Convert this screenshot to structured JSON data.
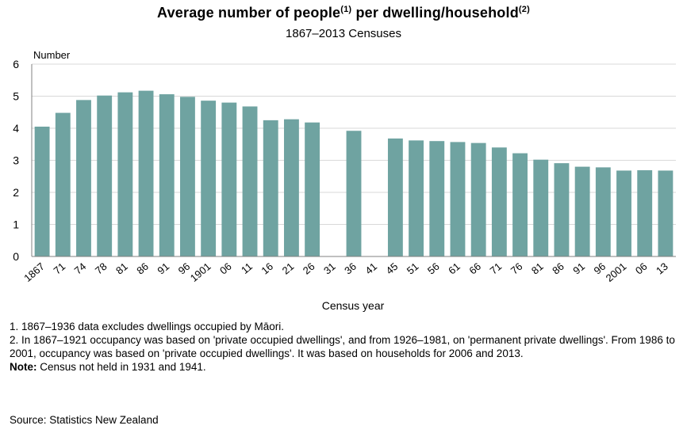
{
  "header": {
    "title_part1": "Average number of people",
    "title_sup1": "(1)",
    "title_part2": " per dwelling/household",
    "title_sup2": "(2)",
    "subtitle": "1867–2013 Censuses"
  },
  "colors": {
    "bar": "#6fa3a1",
    "grid": "#d9d9d9",
    "axis": "#808080"
  },
  "chart_data": {
    "type": "bar",
    "title": "Average number of people per dwelling/household",
    "subtitle": "1867–2013 Censuses",
    "xlabel": "Census year",
    "ylabel": "Number",
    "ylim": [
      0,
      6
    ],
    "yticks": [
      0,
      1,
      2,
      3,
      4,
      5,
      6
    ],
    "grid": true,
    "categories": [
      "1867",
      "71",
      "74",
      "78",
      "81",
      "86",
      "91",
      "96",
      "1901",
      "06",
      "11",
      "16",
      "21",
      "26",
      "31",
      "36",
      "41",
      "45",
      "51",
      "56",
      "61",
      "66",
      "71",
      "76",
      "81",
      "86",
      "91",
      "96",
      "2001",
      "06",
      "13"
    ],
    "values": [
      4.05,
      4.48,
      4.88,
      5.02,
      5.12,
      5.17,
      5.06,
      4.98,
      4.86,
      4.8,
      4.68,
      4.25,
      4.28,
      4.18,
      null,
      3.92,
      null,
      3.68,
      3.62,
      3.6,
      3.57,
      3.54,
      3.4,
      3.22,
      3.02,
      2.91,
      2.8,
      2.78,
      2.68,
      2.69,
      2.68
    ]
  },
  "notes": {
    "note1": "1. 1867–1936 data excludes dwellings occupied by Māori.",
    "note2": "2. In 1867–1921 occupancy was based on 'private occupied dwellings', and from 1926–1981, on 'permanent private dwellings'. From 1986 to 2001, occupancy was based on 'private occupied dwellings'. It was based on households for 2006 and 2013.",
    "note_label": "Note:",
    "note_text": " Census not held in 1931 and 1941."
  },
  "source": "Source: Statistics New Zealand"
}
